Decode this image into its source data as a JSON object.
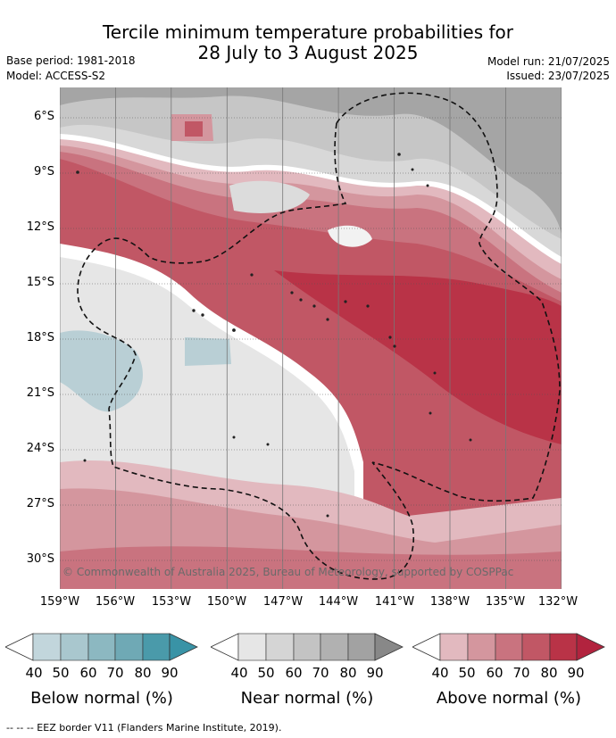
{
  "title_line1": "Tercile minimum temperature probabilities for",
  "title_line2": "28 July to 3 August 2025",
  "base_period": "Base period: 1981-2018",
  "model": "Model: ACCESS-S2",
  "model_run": "Model run: 21/07/2025",
  "issued": "Issued: 23/07/2025",
  "lat_labels": [
    "6°S",
    "9°S",
    "12°S",
    "15°S",
    "18°S",
    "21°S",
    "24°S",
    "27°S",
    "30°S"
  ],
  "lon_labels": [
    "159°W",
    "156°W",
    "153°W",
    "150°W",
    "147°W",
    "144°W",
    "141°W",
    "138°W",
    "135°W",
    "132°W"
  ],
  "copyright": "© Commonwealth of Australia 2025, Bureau of Meteorology, supported by COSPPac",
  "colorbars": [
    {
      "title": "Below normal (%)",
      "ticks": [
        "40",
        "50",
        "60",
        "70",
        "80",
        "90"
      ],
      "colors": [
        "#c2d6dc",
        "#a9c7ce",
        "#8cb8c1",
        "#6fa9b5",
        "#4a9aaa"
      ]
    },
    {
      "title": "Near normal (%)",
      "ticks": [
        "40",
        "50",
        "60",
        "70",
        "80",
        "90"
      ],
      "colors": [
        "#e6e6e6",
        "#d5d5d5",
        "#c3c3c3",
        "#b1b1b1",
        "#a2a2a2",
        "#888888"
      ]
    },
    {
      "title": "Above normal (%)",
      "ticks": [
        "40",
        "50",
        "60",
        "70",
        "80",
        "90"
      ],
      "colors": [
        "#e2b9bf",
        "#d4969e",
        "#c9737f",
        "#c15765",
        "#b93347",
        "#b2233e"
      ]
    }
  ],
  "footer": "--  --  -- EEZ border V11 (Flanders Marine Institute, 2019)."
}
